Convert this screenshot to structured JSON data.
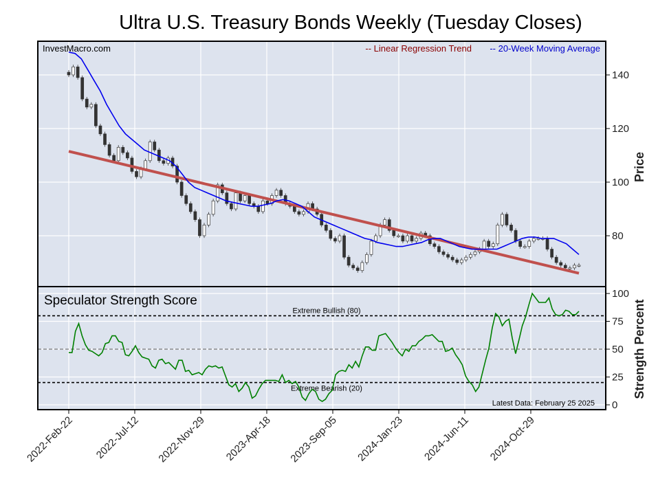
{
  "chart_data": [
    {
      "type": "candlestick",
      "title": "Ultra U.S. Treasury Bonds Weekly (Tuesday Closes)",
      "source": "InvestMacro.com",
      "ylabel": "Price",
      "ylim": [
        62,
        150
      ],
      "yticks": [
        80,
        100,
        120,
        140
      ],
      "legend": [
        "-- Linear Regression Trend",
        "-- 20-Week Moving Average"
      ],
      "colors": {
        "regression": "#c0504d",
        "moving_average": "#0000ee",
        "legend_regression": "#8b0000",
        "legend_ma": "#0000cc"
      },
      "x_labels": [
        "2022-Feb-22",
        "2022-Jul-12",
        "2022-Nov-29",
        "2023-Apr-18",
        "2023-Sep-05",
        "2024-Jan-23",
        "2024-Jun-11",
        "2024-Oct-29"
      ],
      "closes": [
        140,
        143,
        139,
        131,
        128,
        129,
        121,
        118,
        114,
        110,
        108,
        113,
        111,
        109,
        104,
        102,
        105,
        108,
        115,
        112,
        108,
        107,
        109,
        106,
        100,
        95,
        92,
        89,
        86,
        80,
        84,
        88,
        93,
        99,
        96,
        92,
        90,
        96,
        93,
        95,
        92,
        91,
        89,
        93,
        92,
        95,
        97,
        95,
        92,
        91,
        89,
        88,
        89,
        92,
        90,
        88,
        84,
        82,
        79,
        78,
        80,
        72,
        69,
        68,
        67,
        70,
        73,
        78,
        80,
        84,
        86,
        82,
        80,
        80,
        78,
        80,
        78,
        79,
        81,
        80,
        77,
        76,
        74,
        73,
        72,
        71,
        70,
        71,
        72,
        73,
        74,
        75,
        78,
        76,
        77,
        84,
        88,
        84,
        82,
        78,
        76,
        76,
        78,
        79,
        79,
        79,
        75,
        72,
        70,
        69,
        68,
        68,
        69,
        69
      ],
      "regression": {
        "start": 111.5,
        "end": 66
      },
      "moving_average": [
        148.5,
        148,
        146,
        142,
        138,
        134,
        129,
        125,
        121,
        118,
        116,
        114,
        112,
        111,
        110,
        109,
        108,
        106,
        103,
        100,
        98,
        97,
        96,
        95,
        94,
        93,
        92.5,
        92,
        91.5,
        91,
        91,
        91.5,
        92,
        93,
        93.5,
        93,
        92,
        91,
        89,
        87,
        86,
        85,
        84,
        83,
        82,
        81,
        80,
        79,
        78.5,
        77.5,
        77,
        76.5,
        76,
        76,
        76.5,
        77,
        77.5,
        78.5,
        79,
        79,
        78,
        77,
        76,
        75.5,
        75,
        75,
        75,
        75,
        75,
        76,
        77,
        78,
        79,
        79.5,
        79.5,
        79,
        79,
        79,
        78,
        77,
        75,
        73
      ]
    },
    {
      "type": "line",
      "title": "Speculator Strength Score",
      "ylabel": "Strength Percent",
      "ylim": [
        0,
        100
      ],
      "yticks": [
        0,
        25,
        50,
        75,
        100
      ],
      "thresholds": [
        {
          "value": 80,
          "label": "Extreme Bullish (80)"
        },
        {
          "value": 50,
          "label": ""
        },
        {
          "value": 20,
          "label": "Extreme Bearish (20)"
        }
      ],
      "note": "Latest Data: February 25 2025",
      "color": "#008000",
      "values": [
        47,
        47,
        66,
        73,
        62,
        54,
        49,
        48,
        46,
        44,
        47,
        55,
        56,
        62,
        62,
        57,
        56,
        45,
        44,
        48,
        53,
        47,
        43,
        42,
        41,
        35,
        33,
        40,
        41,
        37,
        38,
        35,
        32,
        40,
        40,
        30,
        31,
        27,
        28,
        29,
        27,
        32,
        35,
        34,
        35,
        33,
        34,
        26,
        18,
        16,
        19,
        12,
        15,
        20,
        16,
        6,
        8,
        14,
        19,
        22,
        22,
        22,
        22,
        21,
        27,
        20,
        22,
        19,
        21,
        16,
        7,
        4,
        10,
        14,
        12,
        5,
        3,
        5,
        10,
        13,
        27,
        30,
        31,
        30,
        36,
        33,
        39,
        34,
        44,
        52,
        52,
        49,
        49,
        62,
        63,
        64,
        60,
        56,
        51,
        47,
        44,
        50,
        48,
        53,
        53,
        57,
        59,
        62,
        62,
        63,
        60,
        57,
        57,
        48,
        49,
        51,
        45,
        41,
        36,
        26,
        21,
        18,
        12,
        16,
        28,
        40,
        51,
        69,
        82,
        79,
        71,
        75,
        77,
        60,
        46,
        58,
        71,
        79,
        90,
        100,
        96,
        92,
        92,
        92,
        96,
        86,
        81,
        80,
        81,
        85,
        84,
        81,
        81,
        84
      ]
    }
  ]
}
